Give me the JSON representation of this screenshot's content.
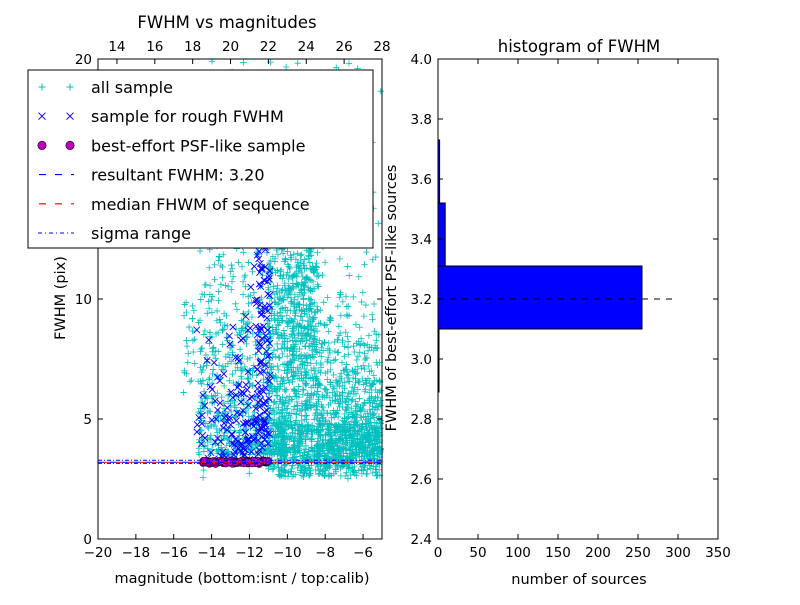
{
  "chart_data": [
    {
      "type": "scatter",
      "title": "FWHM vs magnitudes",
      "xlabel": "magnitude (bottom:isnt / top:calib)",
      "ylabel": "FWHM (pix)",
      "xlim": [
        -20,
        -5
      ],
      "ylim": [
        0,
        20
      ],
      "x_ticks": [
        -20,
        -18,
        -16,
        -14,
        -12,
        -10,
        -8,
        -6
      ],
      "x_tick_labels": [
        "−20",
        "−18",
        "−16",
        "−14",
        "−12",
        "−10",
        "−8",
        "−6"
      ],
      "y_ticks": [
        0,
        5,
        10,
        20
      ],
      "y_tick_labels": [
        "0",
        "5",
        "10",
        "20"
      ],
      "top_axis": {
        "xlim": [
          13,
          28
        ],
        "ticks": [
          14,
          16,
          18,
          20,
          22,
          24,
          26,
          28
        ],
        "tick_labels": [
          "14",
          "16",
          "18",
          "20",
          "22",
          "24",
          "26",
          "28"
        ]
      },
      "legend_placement": "upper-left",
      "legend": [
        {
          "label": "all sample",
          "marker": "plus",
          "color": "#00bfbf"
        },
        {
          "label": "sample for rough FWHM",
          "marker": "x",
          "color": "#0000ff"
        },
        {
          "label": "best-effort PSF-like sample",
          "marker": "circle",
          "color": "#bf00bf"
        },
        {
          "label": "resultant FWHM: 3.20",
          "marker": "dashed",
          "color": "#0000ff"
        },
        {
          "label": "median FHWM of sequence",
          "marker": "dashed",
          "color": "#ff0000"
        },
        {
          "label": "sigma range",
          "marker": "dashdot",
          "color": "#0000ff"
        }
      ],
      "series": [
        {
          "name": "all sample",
          "distribution": "dense scatter concentrated between x=-15 and x=-5, FWHM 2.5 to 20"
        },
        {
          "name": "sample for rough FWHM",
          "distribution": "x=-14.8 to -11, FWHM 3 to 14"
        },
        {
          "name": "best-effort PSF-like sample",
          "x_range": [
            -14.5,
            -11
          ],
          "y": 3.2
        },
        {
          "name": "resultant FWHM: 3.20",
          "y": 3.2
        },
        {
          "name": "median FHWM of sequence",
          "y": 3.2
        },
        {
          "name": "sigma range",
          "y": [
            3.15,
            3.28
          ]
        }
      ]
    },
    {
      "type": "bar",
      "orientation": "horizontal",
      "title": "histogram of FWHM",
      "xlabel": "number of sources",
      "ylabel": "FWHM of best-effort PSF-like sources",
      "xlim": [
        0,
        350
      ],
      "ylim": [
        2.4,
        4.0
      ],
      "x_ticks": [
        0,
        50,
        100,
        150,
        200,
        250,
        300,
        350
      ],
      "y_ticks": [
        2.4,
        2.6,
        2.8,
        3.0,
        3.2,
        3.4,
        3.6,
        3.8,
        4.0
      ],
      "y_tick_labels": [
        "2.4",
        "2.6",
        "2.8",
        "3.0",
        "3.2",
        "3.4",
        "3.6",
        "3.8",
        "4.0"
      ],
      "bin_width": 0.21,
      "bins": [
        {
          "start": 2.89,
          "count": 1
        },
        {
          "start": 3.1,
          "count": 255
        },
        {
          "start": 3.31,
          "count": 9
        },
        {
          "start": 3.52,
          "count": 2
        }
      ],
      "reference_line": {
        "y": 3.2,
        "x_range": [
          0,
          300
        ],
        "style": "dashed",
        "color": "#000000"
      }
    }
  ]
}
